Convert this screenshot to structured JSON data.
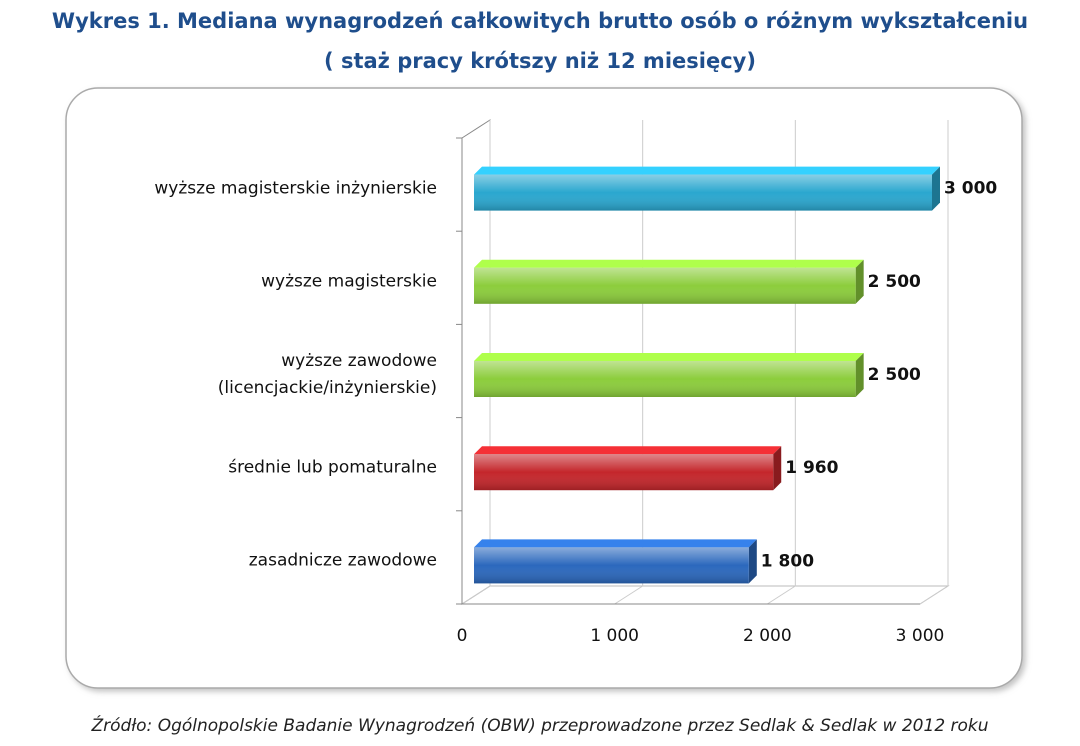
{
  "chart_data": {
    "type": "bar",
    "orientation": "horizontal",
    "title": "Wykres 1. Mediana wynagrodzeń całkowitych brutto osób o różnym wykształceniu",
    "subtitle": "( staż pracy krótszy niż 12 miesięcy)",
    "categories": [
      "wyższe magisterskie inżynierskie",
      "wyższe magisterskie",
      "wyższe zawodowe\n(licencjackie/inżynierskie)",
      "średnie lub pomaturalne",
      "zasadnicze zawodowe"
    ],
    "values": [
      3000,
      2500,
      2500,
      1960,
      1800
    ],
    "value_labels": [
      "3 000",
      "2 500",
      "2 500",
      "1 960",
      "1 800"
    ],
    "colors": [
      "#2aa7cf",
      "#8ccd3c",
      "#8ccd3c",
      "#c4262b",
      "#2b68bd"
    ],
    "xlim": [
      0,
      3000
    ],
    "xticks": [
      0,
      {
        "value": 1000,
        "label": "1 000"
      },
      {
        "value": 2000,
        "label": "2 000"
      },
      {
        "value": 3000,
        "label": "3 000"
      }
    ],
    "grid": true,
    "source": "Źródło: Ogólnopolskie Badanie Wynagrodzeń (OBW) przeprowadzone przez Sedlak & Sedlak w 2012 roku"
  }
}
